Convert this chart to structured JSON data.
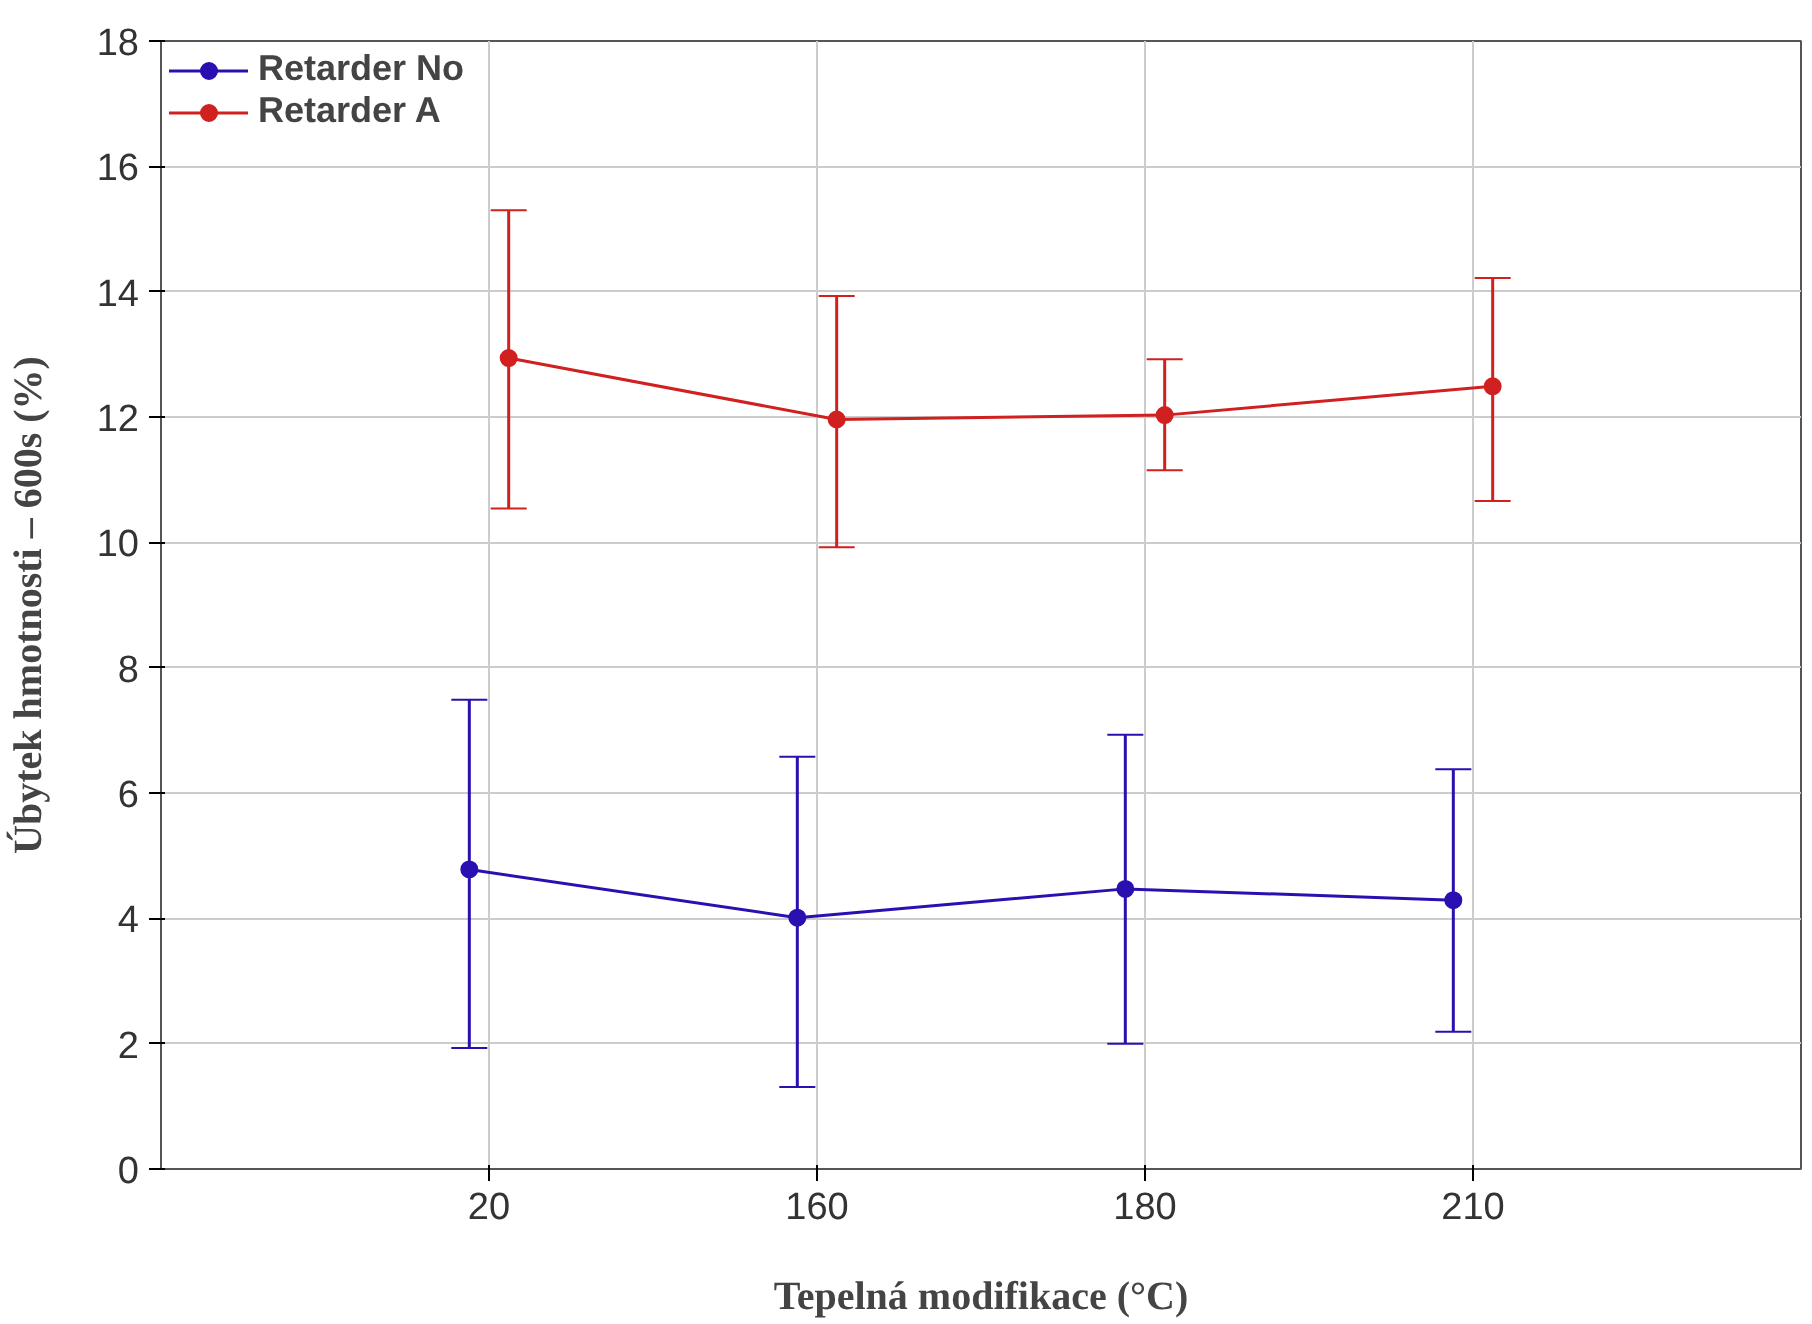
{
  "chart_data": {
    "type": "line",
    "xlabel": "Tepelná modifikace (°C)",
    "ylabel": "Úbytek hmotnosti – 600s (%)",
    "categories": [
      "20",
      "160",
      "180",
      "210"
    ],
    "ylim": [
      0,
      18
    ],
    "yticks": [
      0,
      2,
      4,
      6,
      8,
      10,
      12,
      14,
      16,
      18
    ],
    "grid": true,
    "legend": "top left",
    "marker": "circle",
    "line_style": "solid",
    "series": [
      {
        "name": "Retarder No",
        "color": "#2a10b0",
        "values": [
          4.78,
          4.01,
          4.47,
          4.29
        ],
        "errors": [
          [
            1.93,
            7.49
          ],
          [
            1.31,
            6.58
          ],
          [
            2.0,
            6.93
          ],
          [
            2.19,
            6.38
          ]
        ]
      },
      {
        "name": "Retarder A",
        "color": "#d02020",
        "values": [
          12.94,
          11.96,
          12.03,
          12.49
        ],
        "errors": [
          [
            10.54,
            15.3
          ],
          [
            9.92,
            13.93
          ],
          [
            11.15,
            12.92
          ],
          [
            10.66,
            14.22
          ]
        ]
      }
    ]
  }
}
